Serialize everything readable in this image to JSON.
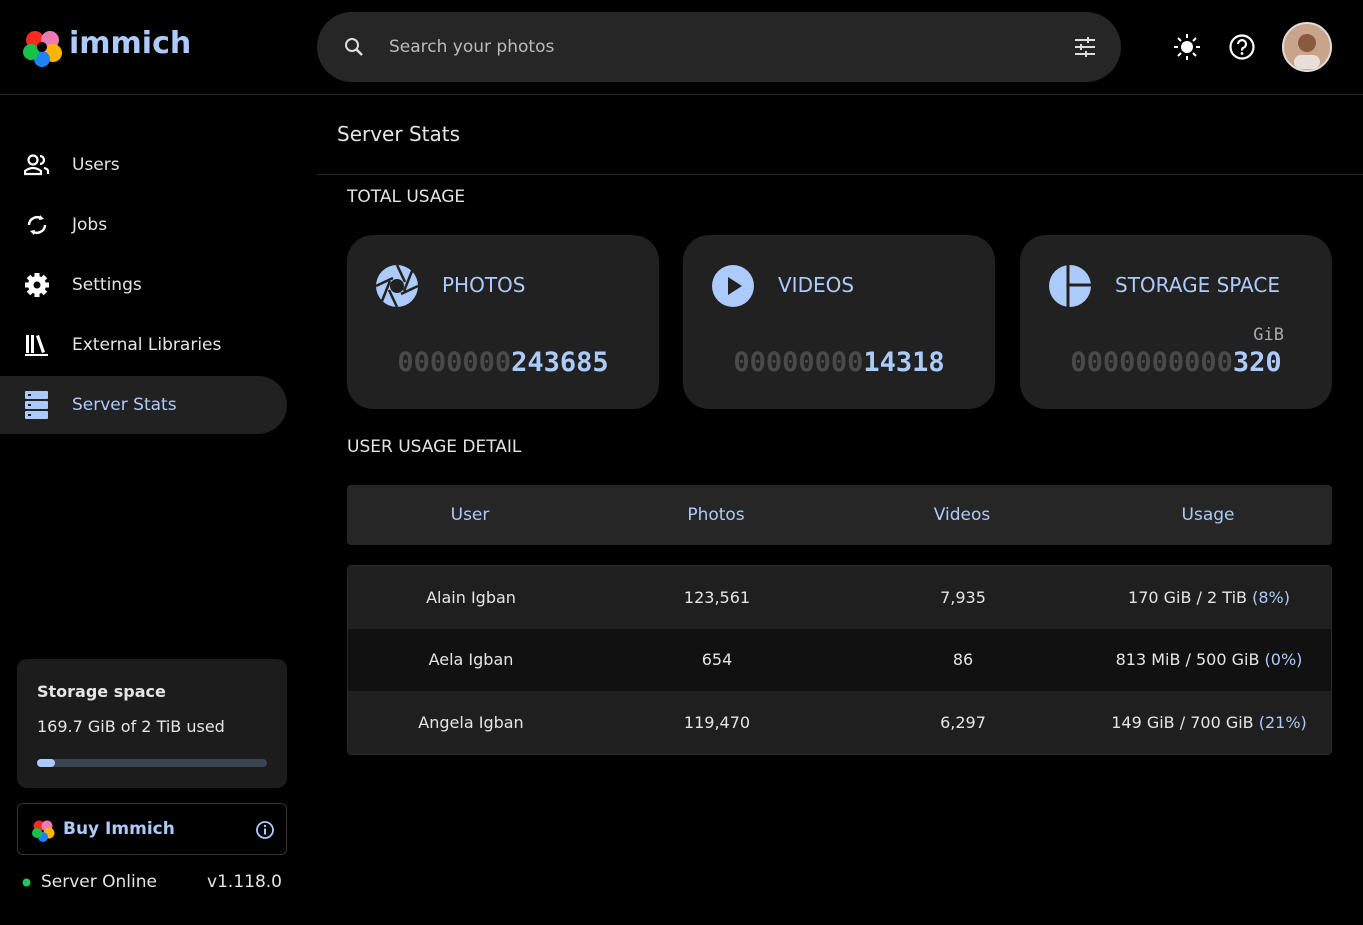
{
  "header": {
    "logo_text": "immich",
    "search_placeholder": "Search your photos"
  },
  "sidebar": {
    "nav": [
      "Users",
      "Jobs",
      "Settings",
      "External Libraries",
      "Server Stats"
    ],
    "storage": {
      "title": "Storage space",
      "detail": "169.7 GiB of 2 TiB used"
    },
    "buy": "Buy Immich",
    "status": "Server Online",
    "version": "v1.118.0"
  },
  "main": {
    "title": "Server Stats",
    "total_usage_title": "TOTAL USAGE",
    "cards": [
      {
        "label": "PHOTOS",
        "padding": "0000000",
        "value": "243685"
      },
      {
        "label": "VIDEOS",
        "padding": "00000000",
        "value": "14318"
      },
      {
        "label": "STORAGE SPACE",
        "unit": "GiB",
        "padding": "0000000000",
        "value": "320"
      }
    ],
    "user_usage_title": "USER USAGE DETAIL",
    "table": {
      "headers": [
        "User",
        "Photos",
        "Videos",
        "Usage"
      ],
      "rows": [
        [
          "Alain Igban",
          "123,561",
          "7,935",
          "170 GiB / 2 TiB",
          "(8%)"
        ],
        [
          "Aela Igban",
          "654",
          "86",
          "813 MiB / 500 GiB",
          "(0%)"
        ],
        [
          "Angela Igban",
          "119,470",
          "6,297",
          "149 GiB / 700 GiB",
          "(21%)"
        ]
      ]
    }
  }
}
